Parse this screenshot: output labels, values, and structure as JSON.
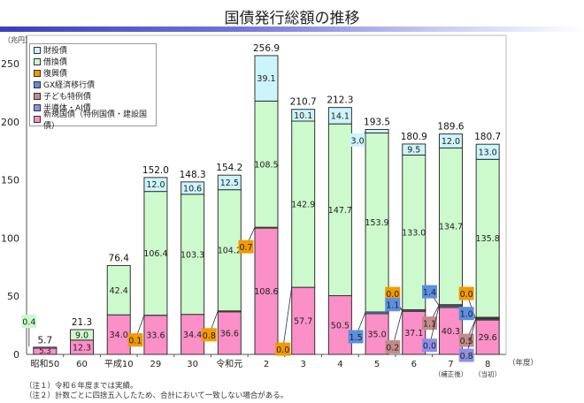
{
  "title": "国債発行総額の推移",
  "notes": [
    "（注１）令和６年度までは実績。",
    "（注２）計数ごとに四捨五入したため、合計において一致しない場合がある。"
  ],
  "chart_data": {
    "type": "bar",
    "stacked": true,
    "title": "国債発行総額の推移",
    "ylabel": "（兆円）",
    "xlabel": "（年度）",
    "ylim": [
      0,
      250
    ],
    "yticks": [
      0,
      50,
      100,
      150,
      200,
      250
    ],
    "grid": false,
    "legend_position": "top-left",
    "categories": [
      "昭和50",
      "60",
      "平成10",
      "29",
      "30",
      "令和元",
      "2",
      "3",
      "4",
      "5",
      "6",
      "7",
      "8"
    ],
    "category_sublabels": [
      "",
      "",
      "",
      "",
      "",
      "",
      "",
      "",
      "",
      "",
      "",
      "（補正後）",
      "（当初）"
    ],
    "totals": [
      5.7,
      21.3,
      76.4,
      152.0,
      148.3,
      154.2,
      256.9,
      210.7,
      212.3,
      193.5,
      180.9,
      189.6,
      180.7
    ],
    "legend": [
      {
        "name": "財投債",
        "color": "#ccf4fb"
      },
      {
        "name": "借換債",
        "color": "#ccfacc"
      },
      {
        "name": "復興債",
        "color": "#f29a00"
      },
      {
        "name": "GX経済移行債",
        "color": "#5b8fe0"
      },
      {
        "name": "子ども特例債",
        "color": "#c48b8b"
      },
      {
        "name": "半導体・AI債",
        "color": "#8f8fe8"
      },
      {
        "name": "新規国債（特例国債・建設国債）",
        "color": "#fb8fc8"
      }
    ],
    "series": [
      {
        "name": "新規国債（特例国債・建設国債）",
        "color": "#fb8fc8",
        "values": [
          5.3,
          12.3,
          34.0,
          33.6,
          34.4,
          36.6,
          108.6,
          57.7,
          50.5,
          35.0,
          37.1,
          40.3,
          29.6
        ]
      },
      {
        "name": "復興債",
        "color": "#f29a00",
        "values": [
          null,
          null,
          null,
          0.1,
          null,
          0.8,
          0.7,
          0.0,
          null,
          null,
          0.0,
          null,
          0.0
        ]
      },
      {
        "name": "GX経済移行債",
        "color": "#5b8fe0",
        "values": [
          null,
          null,
          null,
          null,
          null,
          null,
          null,
          null,
          null,
          1.5,
          1.1,
          1.4,
          1.0
        ]
      },
      {
        "name": "子ども特例債",
        "color": "#c48b8b",
        "values": [
          null,
          null,
          null,
          null,
          null,
          null,
          null,
          null,
          null,
          null,
          0.2,
          1.1,
          0.5
        ]
      },
      {
        "name": "半導体・AI債",
        "color": "#8f8fe8",
        "values": [
          null,
          null,
          null,
          null,
          null,
          null,
          null,
          null,
          null,
          null,
          null,
          0.0,
          0.8
        ]
      },
      {
        "name": "借換債",
        "color": "#ccfacc",
        "values": [
          0.4,
          9.0,
          42.4,
          106.4,
          103.3,
          104.2,
          108.5,
          142.9,
          147.7,
          153.9,
          133.0,
          134.7,
          135.8
        ]
      },
      {
        "name": "財投債",
        "color": "#ccf4fb",
        "values": [
          null,
          null,
          null,
          12.0,
          10.6,
          12.5,
          39.1,
          10.1,
          14.1,
          3.0,
          9.5,
          12.0,
          13.0
        ]
      }
    ]
  }
}
